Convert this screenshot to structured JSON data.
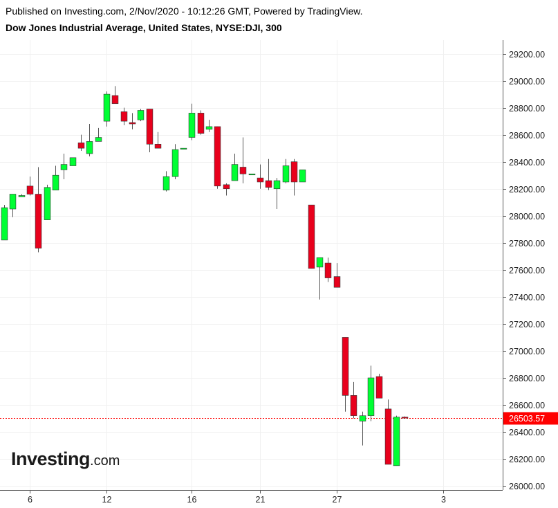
{
  "header": {
    "published": "Published on Investing.com, 2/Nov/2020 - 10:12:26 GMT, Powered by TradingView.",
    "instrument": "Dow Jones Industrial Average, United States, NYSE:DJI, 300"
  },
  "logo": {
    "main": "Investing",
    "suffix": ".com"
  },
  "colors": {
    "up": "#00ff33",
    "down": "#e8001c",
    "grid": "#f0f0f0",
    "axis": "#555555",
    "price_line": "#ff0000",
    "price_label_bg": "#ff0000"
  },
  "chart_data": {
    "type": "candlestick",
    "title": "Dow Jones Industrial Average, United States, NYSE:DJI, 300",
    "ylim": [
      25970,
      29300
    ],
    "y_ticks": [
      26000,
      26200,
      26400,
      26600,
      26800,
      27000,
      27200,
      27400,
      27600,
      27800,
      28000,
      28200,
      28400,
      28600,
      28800,
      29000,
      29200
    ],
    "y_tick_labels": [
      "26000.00",
      "26200.00",
      "26400.00",
      "26600.00",
      "26800.00",
      "27000.00",
      "27200.00",
      "27400.00",
      "27600.00",
      "27800.00",
      "28000.00",
      "28200.00",
      "28400.00",
      "28600.00",
      "28800.00",
      "29000.00",
      "29200.00"
    ],
    "x_tick_labels": [
      {
        "label": "6",
        "index": 3
      },
      {
        "label": "12",
        "index": 12
      },
      {
        "label": "16",
        "index": 22
      },
      {
        "label": "21",
        "index": 30
      },
      {
        "label": "27",
        "index": 39
      },
      {
        "label": "3",
        "index": 51.5
      }
    ],
    "x_range": [
      -0.5,
      58.5
    ],
    "current_price": 26503.57,
    "current_price_label": "26503.57",
    "grid": true,
    "candles": [
      {
        "o": 27820,
        "h": 28080,
        "l": 27820,
        "c": 28060
      },
      {
        "o": 28050,
        "h": 28160,
        "l": 27990,
        "c": 28160
      },
      {
        "o": 28140,
        "h": 28160,
        "l": 28140,
        "c": 28150
      },
      {
        "o": 28220,
        "h": 28290,
        "l": 28150,
        "c": 28160
      },
      {
        "o": 28160,
        "h": 28360,
        "l": 27730,
        "c": 27760
      },
      {
        "o": 27970,
        "h": 28230,
        "l": 27970,
        "c": 28210
      },
      {
        "o": 28190,
        "h": 28370,
        "l": 28190,
        "c": 28300
      },
      {
        "o": 28340,
        "h": 28460,
        "l": 28270,
        "c": 28380
      },
      {
        "o": 28370,
        "h": 28430,
        "l": 28370,
        "c": 28430
      },
      {
        "o": 28540,
        "h": 28600,
        "l": 28480,
        "c": 28500
      },
      {
        "o": 28460,
        "h": 28680,
        "l": 28440,
        "c": 28550
      },
      {
        "o": 28550,
        "h": 28650,
        "l": 28550,
        "c": 28580
      },
      {
        "o": 28700,
        "h": 28920,
        "l": 28660,
        "c": 28900
      },
      {
        "o": 28890,
        "h": 28960,
        "l": 28830,
        "c": 28830
      },
      {
        "o": 28770,
        "h": 28800,
        "l": 28670,
        "c": 28700
      },
      {
        "o": 28690,
        "h": 28760,
        "l": 28640,
        "c": 28680
      },
      {
        "o": 28710,
        "h": 28790,
        "l": 28700,
        "c": 28780
      },
      {
        "o": 28790,
        "h": 28790,
        "l": 28470,
        "c": 28530
      },
      {
        "o": 28530,
        "h": 28620,
        "l": 28500,
        "c": 28500
      },
      {
        "o": 28190,
        "h": 28330,
        "l": 28180,
        "c": 28290
      },
      {
        "o": 28290,
        "h": 28530,
        "l": 28270,
        "c": 28490
      },
      {
        "o": 28500,
        "h": 28500,
        "l": 28500,
        "c": 28500
      },
      {
        "o": 28580,
        "h": 28830,
        "l": 28560,
        "c": 28760
      },
      {
        "o": 28760,
        "h": 28780,
        "l": 28600,
        "c": 28610
      },
      {
        "o": 28640,
        "h": 28710,
        "l": 28620,
        "c": 28660
      },
      {
        "o": 28660,
        "h": 28660,
        "l": 28200,
        "c": 28220
      },
      {
        "o": 28230,
        "h": 28240,
        "l": 28150,
        "c": 28200
      },
      {
        "o": 28260,
        "h": 28460,
        "l": 28260,
        "c": 28380
      },
      {
        "o": 28360,
        "h": 28580,
        "l": 28240,
        "c": 28310
      },
      {
        "o": 28310,
        "h": 28310,
        "l": 28310,
        "c": 28310
      },
      {
        "o": 28280,
        "h": 28380,
        "l": 28200,
        "c": 28250
      },
      {
        "o": 28260,
        "h": 28420,
        "l": 28190,
        "c": 28210
      },
      {
        "o": 28200,
        "h": 28280,
        "l": 28050,
        "c": 28260
      },
      {
        "o": 28250,
        "h": 28420,
        "l": 28240,
        "c": 28370
      },
      {
        "o": 28400,
        "h": 28420,
        "l": 28150,
        "c": 28250
      },
      {
        "o": 28250,
        "h": 28340,
        "l": 28250,
        "c": 28340
      },
      {
        "o": 28080,
        "h": 28080,
        "l": 27610,
        "c": 27610
      },
      {
        "o": 27620,
        "h": 27690,
        "l": 27380,
        "c": 27690
      },
      {
        "o": 27650,
        "h": 27690,
        "l": 27510,
        "c": 27540
      },
      {
        "o": 27550,
        "h": 27650,
        "l": 27470,
        "c": 27470
      },
      {
        "o": 27100,
        "h": 27100,
        "l": 26550,
        "c": 26670
      },
      {
        "o": 26670,
        "h": 26770,
        "l": 26500,
        "c": 26520
      },
      {
        "o": 26480,
        "h": 26550,
        "l": 26300,
        "c": 26520
      },
      {
        "o": 26520,
        "h": 26890,
        "l": 26480,
        "c": 26800
      },
      {
        "o": 26810,
        "h": 26830,
        "l": 26650,
        "c": 26650
      },
      {
        "o": 26570,
        "h": 26640,
        "l": 26160,
        "c": 26160
      },
      {
        "o": 26150,
        "h": 26520,
        "l": 26150,
        "c": 26510
      },
      {
        "o": 26510,
        "h": 26515,
        "l": 26500,
        "c": 26504
      }
    ]
  }
}
